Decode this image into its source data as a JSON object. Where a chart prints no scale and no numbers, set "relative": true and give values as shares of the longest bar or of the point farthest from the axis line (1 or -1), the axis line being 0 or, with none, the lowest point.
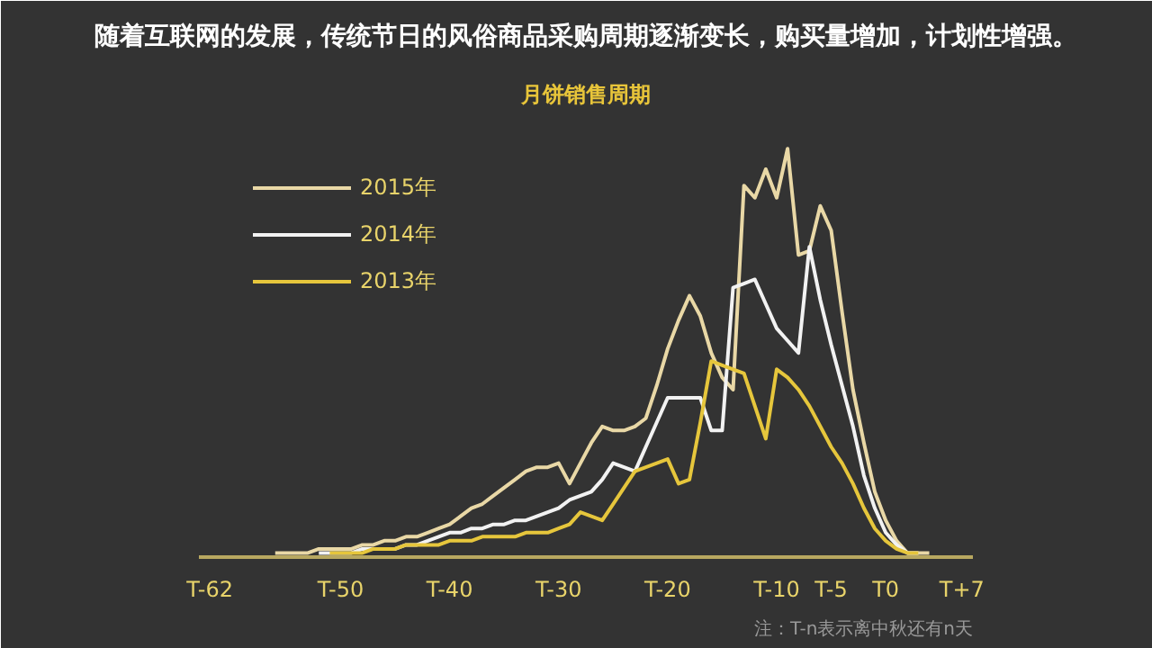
{
  "chart_data": {
    "type": "line",
    "title": "随着互联网的发展，传统节日的风俗商品采购周期逐渐变长，购买量增加，计划性增强。",
    "subtitle": "月饼销售周期",
    "relative": true,
    "legend": "top left",
    "grid": false,
    "marker": "none",
    "line_style": "solid",
    "categories": [
      "T-62",
      null,
      null,
      null,
      null,
      null,
      null,
      null,
      null,
      null,
      null,
      null,
      "T-50",
      null,
      null,
      null,
      null,
      null,
      null,
      null,
      null,
      null,
      "T-40",
      null,
      null,
      null,
      null,
      null,
      null,
      null,
      null,
      null,
      "T-30",
      null,
      null,
      null,
      null,
      null,
      null,
      null,
      null,
      null,
      "T-20",
      null,
      null,
      null,
      null,
      null,
      null,
      null,
      null,
      null,
      "T-10",
      null,
      null,
      null,
      null,
      "T-5",
      null,
      null,
      null,
      null,
      "T0",
      null,
      null,
      null,
      null,
      null,
      null,
      "T+7"
    ],
    "annotations": [
      "注：T-n表示离中秋还有n天"
    ],
    "series": [
      {
        "name": "2015年",
        "color": "#e9d8a6",
        "values": [
          null,
          null,
          null,
          null,
          null,
          null,
          0.01,
          0.01,
          0.01,
          0.01,
          0.02,
          0.02,
          0.02,
          0.02,
          0.03,
          0.03,
          0.04,
          0.04,
          0.05,
          0.05,
          0.06,
          0.07,
          0.08,
          0.1,
          0.12,
          0.13,
          0.15,
          0.17,
          0.19,
          0.21,
          0.22,
          0.22,
          0.23,
          0.18,
          0.23,
          0.28,
          0.32,
          0.31,
          0.31,
          0.32,
          0.34,
          0.42,
          0.51,
          0.58,
          0.64,
          0.59,
          0.5,
          0.44,
          0.41,
          0.91,
          0.88,
          0.95,
          0.88,
          1,
          0.74,
          0.75,
          0.86,
          0.8,
          0.6,
          0.41,
          0.28,
          0.16,
          0.09,
          0.04,
          0.01,
          0.01,
          0.01,
          null,
          null,
          null
        ]
      },
      {
        "name": "2014年",
        "color": "#f2f2f2",
        "values": [
          null,
          null,
          null,
          null,
          null,
          null,
          null,
          null,
          null,
          null,
          0.01,
          0.01,
          0.01,
          0.01,
          0.02,
          0.02,
          0.02,
          0.02,
          0.03,
          0.03,
          0.04,
          0.05,
          0.06,
          0.06,
          0.07,
          0.07,
          0.08,
          0.08,
          0.09,
          0.09,
          0.1,
          0.11,
          0.12,
          0.14,
          0.15,
          0.16,
          0.19,
          0.23,
          0.22,
          0.21,
          0.27,
          0.33,
          0.39,
          0.39,
          0.39,
          0.39,
          0.31,
          0.31,
          0.66,
          0.67,
          0.68,
          0.62,
          0.56,
          0.53,
          0.5,
          0.76,
          0.63,
          0.52,
          0.42,
          0.32,
          0.2,
          0.12,
          0.06,
          0.03,
          0.01,
          0.01,
          null,
          null,
          null,
          null
        ]
      },
      {
        "name": "2013年",
        "color": "#e6c63c",
        "values": [
          null,
          null,
          null,
          null,
          null,
          null,
          null,
          null,
          null,
          null,
          null,
          0.01,
          0.01,
          0.01,
          0.01,
          0.02,
          0.02,
          0.02,
          0.03,
          0.03,
          0.03,
          0.03,
          0.04,
          0.04,
          0.04,
          0.05,
          0.05,
          0.05,
          0.05,
          0.06,
          0.06,
          0.06,
          0.07,
          0.08,
          0.11,
          0.1,
          0.09,
          0.13,
          0.17,
          0.21,
          0.22,
          0.23,
          0.24,
          0.18,
          0.19,
          0.33,
          0.48,
          0.47,
          0.46,
          0.45,
          0.37,
          0.29,
          0.46,
          0.44,
          0.41,
          0.37,
          0.32,
          0.27,
          0.23,
          0.18,
          0.12,
          0.07,
          0.04,
          0.02,
          0.01,
          0.01,
          null,
          null,
          null,
          null
        ]
      }
    ]
  }
}
